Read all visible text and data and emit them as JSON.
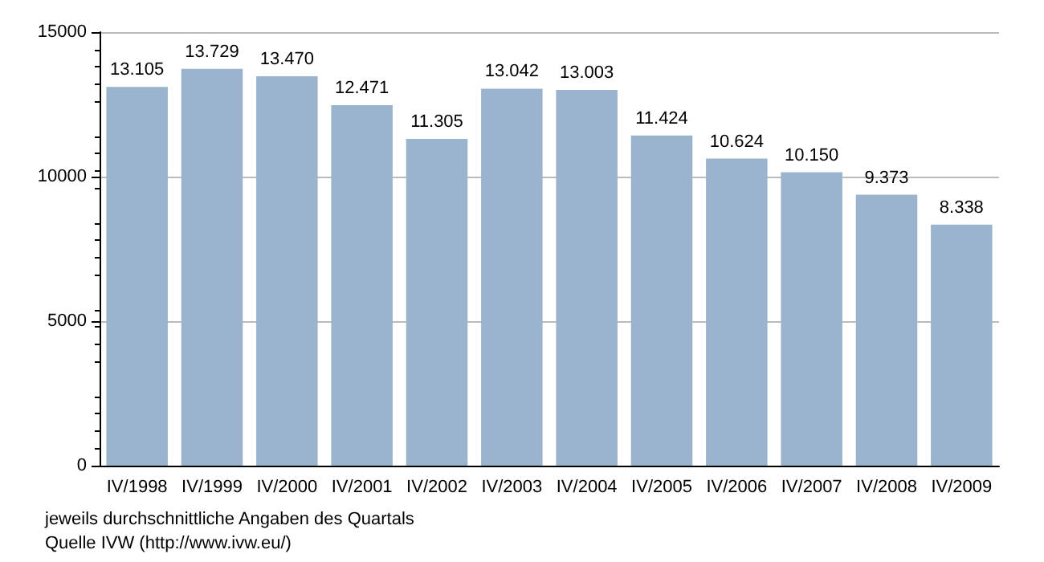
{
  "chart_data": {
    "type": "bar",
    "categories": [
      "IV/1998",
      "IV/1999",
      "IV/2000",
      "IV/2001",
      "IV/2002",
      "IV/2003",
      "IV/2004",
      "IV/2005",
      "IV/2006",
      "IV/2007",
      "IV/2008",
      "IV/2009"
    ],
    "values": [
      13105,
      13729,
      13470,
      12471,
      11305,
      13042,
      13003,
      11424,
      10624,
      10150,
      9373,
      8338
    ],
    "value_labels": [
      "13.105",
      "13.729",
      "13.470",
      "12.471",
      "11.305",
      "13.042",
      "13.003",
      "11.424",
      "10.624",
      "10.150",
      "9.373",
      "8.338"
    ],
    "color": "#9bb4cd",
    "ylim": [
      0,
      15000
    ],
    "yticks": [
      0,
      5000,
      10000,
      15000
    ],
    "grid": "y",
    "annotations": [
      "jeweils durchschnittliche Angaben des Quartals",
      "Quelle IVW (http://www.ivw.eu/)"
    ]
  }
}
